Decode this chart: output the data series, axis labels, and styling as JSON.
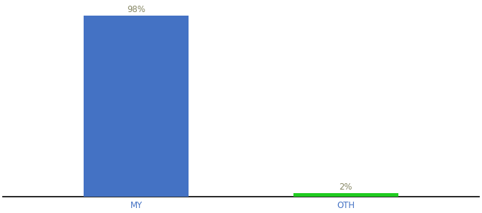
{
  "categories": [
    "MY",
    "OTH"
  ],
  "values": [
    98,
    2
  ],
  "bar_colors": [
    "#4472C4",
    "#21CC21"
  ],
  "label_color": "#888866",
  "xlabel_color": "#4472C4",
  "background_color": "#ffffff",
  "ylim": [
    0,
    105
  ],
  "bar_positions": [
    0.28,
    0.72
  ],
  "bar_width": 0.22,
  "label_fontsize": 8.5,
  "xlabel_fontsize": 8.5
}
